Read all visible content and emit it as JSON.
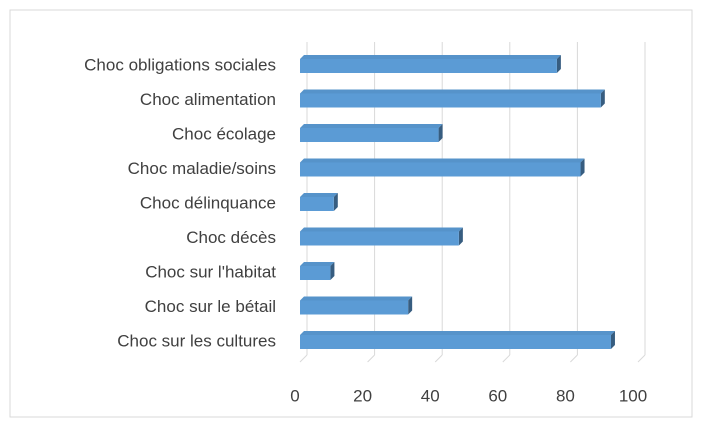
{
  "chart_data": {
    "type": "bar",
    "orientation": "horizontal",
    "categories": [
      "Choc obligations sociales",
      "Choc alimentation",
      "Choc écolage",
      "Choc maladie/soins",
      "Choc délinquance",
      "Choc décès",
      "Choc sur l'habitat",
      "Choc sur le bétail",
      "Choc sur les cultures"
    ],
    "values": [
      76,
      89,
      41,
      83,
      10,
      47,
      9,
      32,
      92
    ],
    "color": "#5b9bd5",
    "xlim": [
      0,
      100
    ],
    "xticks": [
      0,
      20,
      40,
      60,
      80,
      100
    ],
    "grid": true
  }
}
